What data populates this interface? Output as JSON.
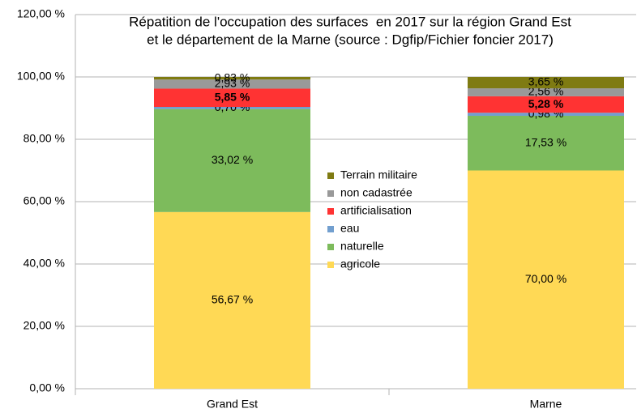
{
  "chart_data": {
    "type": "stacked_bar",
    "title": [
      "Répatition de l'occupation des surfaces  en 2017 sur la région Grand Est",
      "et le département de la Marne (source : Dgfip/Fichier foncier 2017)"
    ],
    "categories": [
      "Grand Est",
      "Marne"
    ],
    "series": [
      {
        "name": "agricole",
        "color": "#ffd955",
        "values": [
          56.67,
          70.0
        ],
        "value_labels": [
          "56,67 %",
          "70,00 %"
        ]
      },
      {
        "name": "naturelle",
        "color": "#7dbb5c",
        "values": [
          33.02,
          17.53
        ],
        "value_labels": [
          "33,02 %",
          "17,53 %"
        ]
      },
      {
        "name": "eau",
        "color": "#729fcf",
        "values": [
          0.7,
          0.98
        ],
        "value_labels": [
          "0,70 %",
          "0,98 %"
        ]
      },
      {
        "name": "artificialisation",
        "color": "#ff3333",
        "values": [
          5.85,
          5.28
        ],
        "value_labels": [
          "5,85 %",
          "5,28 %"
        ],
        "bold_labels": true
      },
      {
        "name": "non cadastrée",
        "color": "#999999",
        "values": [
          2.93,
          2.56
        ],
        "value_labels": [
          "2,93 %",
          "2,56 %"
        ]
      },
      {
        "name": "Terrain militaire",
        "color": "#7f7b12",
        "values": [
          0.83,
          3.65
        ],
        "value_labels": [
          "0,83 %",
          "3,65 %"
        ]
      }
    ],
    "ylim": [
      0,
      120
    ],
    "yticks": [
      {
        "value": 0,
        "label": "0,00 %"
      },
      {
        "value": 20,
        "label": "20,00 %"
      },
      {
        "value": 40,
        "label": "40,00 %"
      },
      {
        "value": 60,
        "label": "60,00 %"
      },
      {
        "value": 80,
        "label": "80,00 %"
      },
      {
        "value": 100,
        "label": "100,00 %"
      },
      {
        "value": 120,
        "label": "120,00 %"
      }
    ],
    "grid": true,
    "legend": "center"
  }
}
